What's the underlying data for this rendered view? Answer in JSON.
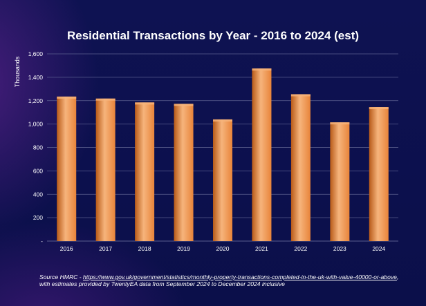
{
  "chart_data": {
    "type": "bar",
    "title": "Residential Transactions by Year - 2016 to 2024 (est)",
    "ylabel": "Thousands",
    "xlabel": "",
    "categories": [
      "2016",
      "2017",
      "2018",
      "2019",
      "2020",
      "2021",
      "2022",
      "2023",
      "2024"
    ],
    "values": [
      1235,
      1218,
      1185,
      1173,
      1040,
      1475,
      1255,
      1015,
      1145
    ],
    "ylim": [
      0,
      1600
    ],
    "yticks": [
      0,
      200,
      400,
      600,
      800,
      1000,
      1200,
      1400,
      1600
    ],
    "ytick_labels": [
      "-",
      "200",
      "400",
      "600",
      "800",
      "1,000",
      "1,200",
      "1,400",
      "1,600"
    ],
    "grid": true,
    "bar_color": "#e8843a",
    "bar_highlight": "#f6b47c",
    "bar_shadow": "#b85a18",
    "grid_color": "#5b5f8f"
  },
  "source": {
    "prefix": "Source HMRC - ",
    "url": "https://www.gov.uk/government/statistics/monthly-property-transactions-completed-in-the-uk-with-value-40000-or-above",
    "suffix": ", with estimates provided by TwentyEA data from September 2024 to December 2024 inclusive"
  },
  "colors": {
    "background": "#0b0f4a",
    "text": "#ffffff"
  }
}
